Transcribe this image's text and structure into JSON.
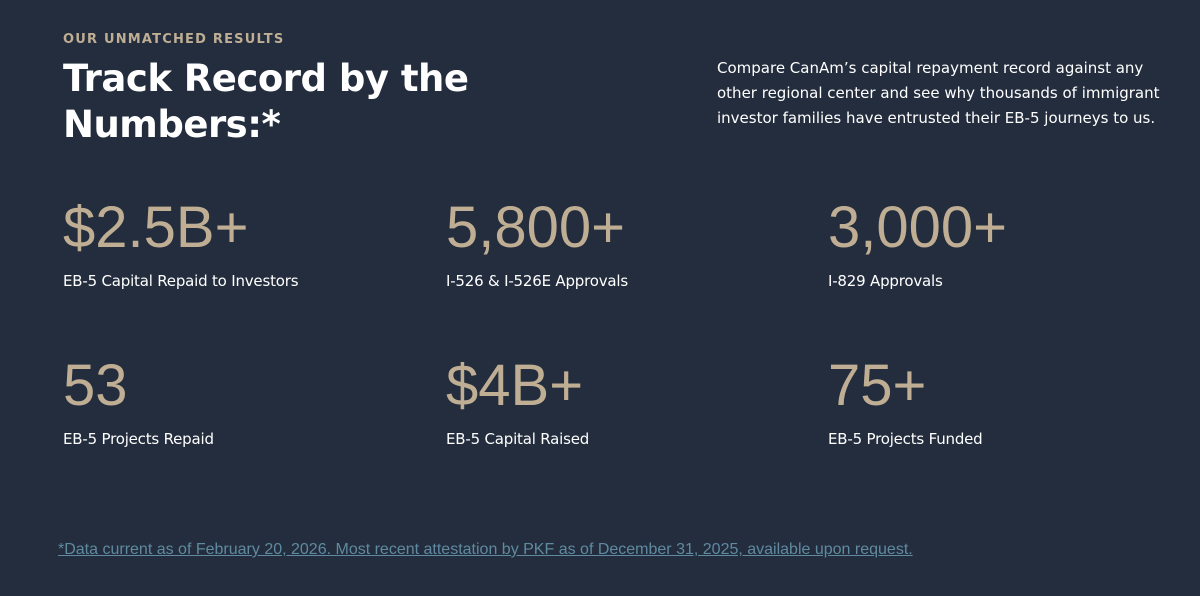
{
  "header": {
    "eyebrow": "OUR UNMATCHED RESULTS",
    "title": "Track Record by the Numbers:*",
    "intro": "Compare CanAm’s capital repayment record against any other regional center and see why thousands of immigrant investor families have entrusted their EB-5 journeys to us."
  },
  "stats": [
    {
      "value": "$2.5B+",
      "label": "EB-5 Capital Repaid to Investors"
    },
    {
      "value": "5,800+",
      "label": "I-526 & I-526E Approvals"
    },
    {
      "value": "3,000+",
      "label": "I-829 Approvals"
    },
    {
      "value": "53",
      "label": "EB-5 Projects Repaid"
    },
    {
      "value": "$4B+",
      "label": "EB-5 Capital Raised"
    },
    {
      "value": "75+",
      "label": "EB-5 Projects Funded"
    }
  ],
  "footnote": "*Data current as of February 20, 2026. Most recent attestation by PKF as of December 31, 2025, available upon request."
}
